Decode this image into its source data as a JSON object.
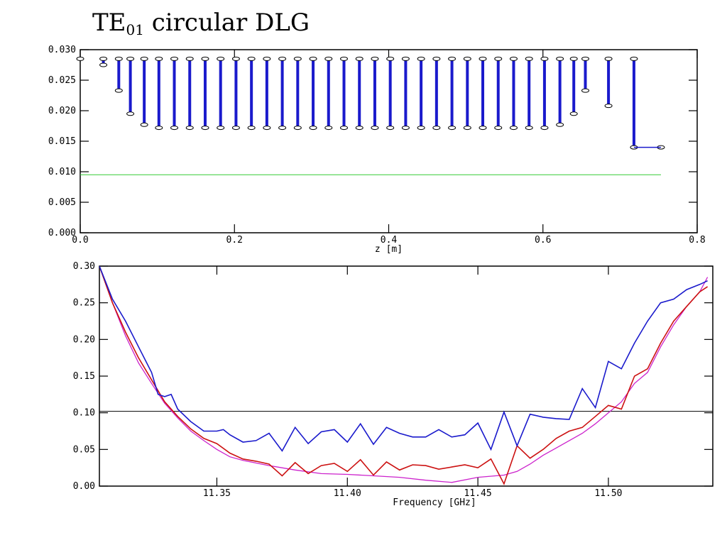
{
  "title": {
    "main": "TE",
    "sub": "01",
    "rest": " circular DLG"
  },
  "chart_data": [
    {
      "type": "bar",
      "description": "vertical segments from top value down to bottom value",
      "xlabel": "z [m]",
      "ylabel": "",
      "xlim": [
        0.0,
        0.8
      ],
      "ylim": [
        0.0,
        0.03
      ],
      "x_ticks": [
        "0.0",
        "0.2",
        "0.4",
        "0.6",
        "0.8"
      ],
      "y_ticks": [
        "0.000",
        "0.005",
        "0.010",
        "0.015",
        "0.020",
        "0.025",
        "0.030"
      ],
      "series_color": "#1a1acc",
      "reference_line": {
        "y": 0.0095,
        "x_range": [
          0.0,
          0.753
        ],
        "color": "#33cc33"
      },
      "segments": [
        {
          "x": 0.0,
          "top": 0.0285,
          "bottom": 0.0285
        },
        {
          "x": 0.03,
          "top": 0.0285,
          "bottom": 0.0275
        },
        {
          "x": 0.05,
          "top": 0.0285,
          "bottom": 0.0233
        },
        {
          "x": 0.065,
          "top": 0.0285,
          "bottom": 0.0195
        },
        {
          "x": 0.083,
          "top": 0.0285,
          "bottom": 0.0177
        },
        {
          "x": 0.102,
          "top": 0.0285,
          "bottom": 0.0172
        },
        {
          "x": 0.122,
          "top": 0.0285,
          "bottom": 0.0172
        },
        {
          "x": 0.142,
          "top": 0.0285,
          "bottom": 0.0172
        },
        {
          "x": 0.162,
          "top": 0.0285,
          "bottom": 0.0172
        },
        {
          "x": 0.182,
          "top": 0.0285,
          "bottom": 0.0172
        },
        {
          "x": 0.202,
          "top": 0.0285,
          "bottom": 0.0172
        },
        {
          "x": 0.222,
          "top": 0.0285,
          "bottom": 0.0172
        },
        {
          "x": 0.242,
          "top": 0.0285,
          "bottom": 0.0172
        },
        {
          "x": 0.262,
          "top": 0.0285,
          "bottom": 0.0172
        },
        {
          "x": 0.282,
          "top": 0.0285,
          "bottom": 0.0172
        },
        {
          "x": 0.302,
          "top": 0.0285,
          "bottom": 0.0172
        },
        {
          "x": 0.322,
          "top": 0.0285,
          "bottom": 0.0172
        },
        {
          "x": 0.342,
          "top": 0.0285,
          "bottom": 0.0172
        },
        {
          "x": 0.362,
          "top": 0.0285,
          "bottom": 0.0172
        },
        {
          "x": 0.382,
          "top": 0.0285,
          "bottom": 0.0172
        },
        {
          "x": 0.402,
          "top": 0.0285,
          "bottom": 0.0172
        },
        {
          "x": 0.422,
          "top": 0.0285,
          "bottom": 0.0172
        },
        {
          "x": 0.442,
          "top": 0.0285,
          "bottom": 0.0172
        },
        {
          "x": 0.462,
          "top": 0.0285,
          "bottom": 0.0172
        },
        {
          "x": 0.482,
          "top": 0.0285,
          "bottom": 0.0172
        },
        {
          "x": 0.502,
          "top": 0.0285,
          "bottom": 0.0172
        },
        {
          "x": 0.522,
          "top": 0.0285,
          "bottom": 0.0172
        },
        {
          "x": 0.542,
          "top": 0.0285,
          "bottom": 0.0172
        },
        {
          "x": 0.562,
          "top": 0.0285,
          "bottom": 0.0172
        },
        {
          "x": 0.582,
          "top": 0.0285,
          "bottom": 0.0172
        },
        {
          "x": 0.602,
          "top": 0.0285,
          "bottom": 0.0172
        },
        {
          "x": 0.622,
          "top": 0.0285,
          "bottom": 0.0177
        },
        {
          "x": 0.64,
          "top": 0.0285,
          "bottom": 0.0195
        },
        {
          "x": 0.655,
          "top": 0.0285,
          "bottom": 0.0233
        },
        {
          "x": 0.685,
          "top": 0.0285,
          "bottom": 0.0208
        },
        {
          "x": 0.718,
          "top": 0.0285,
          "bottom": 0.014
        },
        {
          "x": 0.753,
          "top": 0.014,
          "bottom": 0.014
        }
      ]
    },
    {
      "type": "line",
      "xlabel": "Frequency [GHz]",
      "ylabel": "",
      "xlim": [
        11.305,
        11.54
      ],
      "ylim": [
        0.0,
        0.3
      ],
      "x_ticks": [
        "11.35",
        "11.40",
        "11.45",
        "11.50"
      ],
      "y_ticks": [
        "0.00",
        "0.05",
        "0.10",
        "0.15",
        "0.20",
        "0.25",
        "0.30"
      ],
      "reference_line": {
        "y": 0.102,
        "color": "#000000"
      },
      "series": [
        {
          "color": "#1a1acc",
          "x": [
            11.305,
            11.31,
            11.315,
            11.32,
            11.325,
            11.3275,
            11.33,
            11.3325,
            11.335,
            11.34,
            11.345,
            11.35,
            11.3525,
            11.355,
            11.36,
            11.365,
            11.37,
            11.375,
            11.38,
            11.385,
            11.39,
            11.395,
            11.4,
            11.405,
            11.41,
            11.415,
            11.42,
            11.425,
            11.43,
            11.435,
            11.44,
            11.445,
            11.45,
            11.455,
            11.46,
            11.465,
            11.47,
            11.475,
            11.48,
            11.485,
            11.49,
            11.495,
            11.5,
            11.505,
            11.51,
            11.515,
            11.52,
            11.525,
            11.53,
            11.535,
            11.538
          ],
          "y": [
            0.3,
            0.255,
            0.225,
            0.19,
            0.155,
            0.125,
            0.122,
            0.125,
            0.105,
            0.088,
            0.075,
            0.075,
            0.077,
            0.07,
            0.06,
            0.062,
            0.072,
            0.048,
            0.08,
            0.058,
            0.074,
            0.077,
            0.06,
            0.085,
            0.057,
            0.08,
            0.072,
            0.067,
            0.067,
            0.077,
            0.067,
            0.07,
            0.086,
            0.05,
            0.101,
            0.055,
            0.098,
            0.094,
            0.092,
            0.091,
            0.133,
            0.107,
            0.17,
            0.16,
            0.195,
            0.225,
            0.25,
            0.255,
            0.268,
            0.275,
            0.28
          ]
        },
        {
          "color": "#cc1111",
          "x": [
            11.305,
            11.31,
            11.315,
            11.32,
            11.325,
            11.33,
            11.335,
            11.34,
            11.345,
            11.35,
            11.355,
            11.36,
            11.365,
            11.37,
            11.375,
            11.38,
            11.385,
            11.39,
            11.395,
            11.4,
            11.405,
            11.41,
            11.415,
            11.42,
            11.425,
            11.43,
            11.435,
            11.44,
            11.445,
            11.45,
            11.455,
            11.46,
            11.465,
            11.47,
            11.475,
            11.48,
            11.485,
            11.49,
            11.495,
            11.5,
            11.505,
            11.51,
            11.515,
            11.52,
            11.525,
            11.53,
            11.535,
            11.538
          ],
          "y": [
            0.3,
            0.25,
            0.21,
            0.175,
            0.145,
            0.115,
            0.095,
            0.078,
            0.065,
            0.058,
            0.045,
            0.037,
            0.034,
            0.03,
            0.014,
            0.032,
            0.017,
            0.028,
            0.031,
            0.02,
            0.036,
            0.015,
            0.033,
            0.022,
            0.029,
            0.028,
            0.023,
            0.026,
            0.029,
            0.025,
            0.037,
            0.003,
            0.055,
            0.038,
            0.05,
            0.065,
            0.075,
            0.08,
            0.095,
            0.11,
            0.105,
            0.15,
            0.16,
            0.195,
            0.225,
            0.245,
            0.265,
            0.272
          ]
        },
        {
          "color": "#cc22cc",
          "x": [
            11.305,
            11.31,
            11.315,
            11.32,
            11.325,
            11.33,
            11.335,
            11.34,
            11.345,
            11.35,
            11.355,
            11.36,
            11.37,
            11.38,
            11.39,
            11.4,
            11.41,
            11.42,
            11.43,
            11.44,
            11.45,
            11.46,
            11.465,
            11.47,
            11.475,
            11.48,
            11.485,
            11.49,
            11.495,
            11.5,
            11.505,
            11.51,
            11.515,
            11.52,
            11.525,
            11.53,
            11.535,
            11.538
          ],
          "y": [
            0.3,
            0.25,
            0.205,
            0.168,
            0.14,
            0.113,
            0.093,
            0.075,
            0.062,
            0.05,
            0.04,
            0.035,
            0.028,
            0.022,
            0.017,
            0.016,
            0.014,
            0.012,
            0.008,
            0.005,
            0.012,
            0.015,
            0.02,
            0.03,
            0.042,
            0.052,
            0.062,
            0.072,
            0.085,
            0.1,
            0.115,
            0.14,
            0.155,
            0.19,
            0.22,
            0.245,
            0.265,
            0.285
          ]
        }
      ]
    }
  ]
}
